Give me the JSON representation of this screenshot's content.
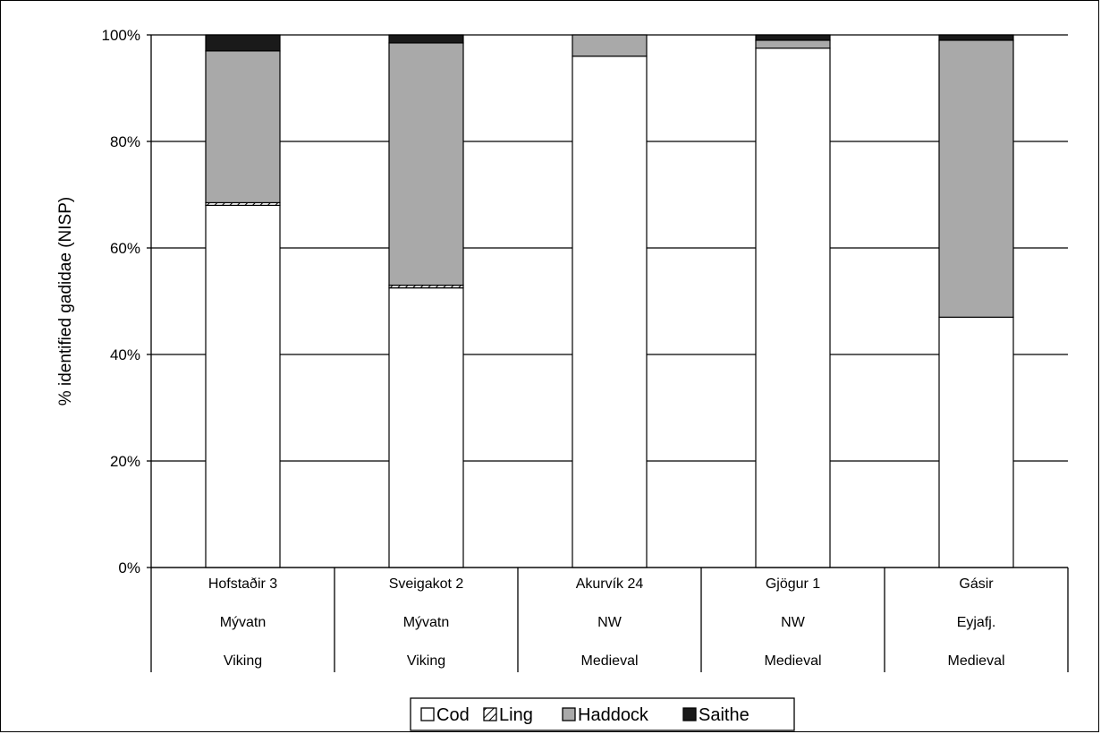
{
  "chart_data": {
    "type": "bar",
    "stacked": true,
    "percent": true,
    "ylabel": "% identified gadidae (NISP)",
    "xlabel": "",
    "ylim": [
      0,
      100
    ],
    "yticks": [
      "0%",
      "20%",
      "40%",
      "60%",
      "80%",
      "100%"
    ],
    "grid": true,
    "legend_position": "bottom",
    "categories": [
      [
        "Hofstaðir 3",
        "Mývatn",
        "Viking"
      ],
      [
        "Sveigakot 2",
        "Mývatn",
        "Viking"
      ],
      [
        "Akurvík 24",
        "NW",
        "Medieval"
      ],
      [
        "Gjögur 1",
        "NW",
        "Medieval"
      ],
      [
        "Gásir",
        "Eyjafj.",
        "Medieval"
      ]
    ],
    "series": [
      {
        "name": "Cod",
        "values": [
          68,
          52.5,
          96,
          97.5,
          47
        ],
        "color": "#ffffff"
      },
      {
        "name": "Ling",
        "values": [
          0.5,
          0.5,
          0,
          0,
          0
        ],
        "color": "#c8c8c8"
      },
      {
        "name": "Haddock",
        "values": [
          28.5,
          45.5,
          4,
          1.5,
          52
        ],
        "color": "#a9a9a9"
      },
      {
        "name": "Saithe",
        "values": [
          3,
          1.5,
          0,
          1,
          1
        ],
        "color": "#1a1a1a"
      }
    ]
  }
}
